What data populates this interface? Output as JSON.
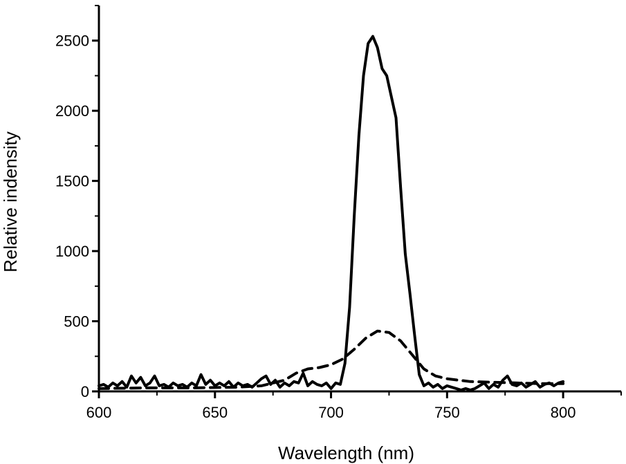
{
  "chart_data": {
    "type": "line",
    "title": "",
    "xlabel": "Wavelength (nm)",
    "ylabel": "Relative indensity",
    "xlim": [
      600,
      825
    ],
    "ylim": [
      0,
      2750
    ],
    "x_ticks": [
      "600",
      "650",
      "700",
      "750",
      "800"
    ],
    "y_ticks": [
      "0",
      "500",
      "1000",
      "1500",
      "2000",
      "2500"
    ],
    "grid": false,
    "legend": "none",
    "series": [
      {
        "style": "solid",
        "color": "#000000",
        "points": [
          [
            600,
            40
          ],
          [
            602,
            50
          ],
          [
            604,
            30
          ],
          [
            606,
            60
          ],
          [
            608,
            40
          ],
          [
            610,
            70
          ],
          [
            612,
            30
          ],
          [
            614,
            110
          ],
          [
            616,
            60
          ],
          [
            618,
            100
          ],
          [
            620,
            40
          ],
          [
            622,
            60
          ],
          [
            624,
            110
          ],
          [
            626,
            40
          ],
          [
            628,
            50
          ],
          [
            630,
            30
          ],
          [
            632,
            60
          ],
          [
            634,
            40
          ],
          [
            636,
            50
          ],
          [
            638,
            30
          ],
          [
            640,
            60
          ],
          [
            642,
            40
          ],
          [
            644,
            120
          ],
          [
            646,
            50
          ],
          [
            648,
            80
          ],
          [
            650,
            40
          ],
          [
            652,
            60
          ],
          [
            654,
            40
          ],
          [
            656,
            70
          ],
          [
            658,
            30
          ],
          [
            660,
            60
          ],
          [
            662,
            40
          ],
          [
            664,
            50
          ],
          [
            666,
            30
          ],
          [
            668,
            60
          ],
          [
            670,
            90
          ],
          [
            672,
            110
          ],
          [
            674,
            50
          ],
          [
            676,
            80
          ],
          [
            678,
            30
          ],
          [
            680,
            60
          ],
          [
            682,
            40
          ],
          [
            684,
            70
          ],
          [
            686,
            60
          ],
          [
            688,
            130
          ],
          [
            690,
            40
          ],
          [
            692,
            70
          ],
          [
            694,
            50
          ],
          [
            696,
            40
          ],
          [
            698,
            60
          ],
          [
            700,
            20
          ],
          [
            702,
            60
          ],
          [
            704,
            50
          ],
          [
            706,
            200
          ],
          [
            708,
            600
          ],
          [
            710,
            1250
          ],
          [
            712,
            1820
          ],
          [
            714,
            2250
          ],
          [
            716,
            2480
          ],
          [
            718,
            2530
          ],
          [
            720,
            2450
          ],
          [
            722,
            2300
          ],
          [
            724,
            2250
          ],
          [
            726,
            2100
          ],
          [
            728,
            1950
          ],
          [
            730,
            1450
          ],
          [
            732,
            980
          ],
          [
            734,
            700
          ],
          [
            736,
            400
          ],
          [
            738,
            120
          ],
          [
            740,
            40
          ],
          [
            742,
            60
          ],
          [
            744,
            30
          ],
          [
            746,
            50
          ],
          [
            748,
            20
          ],
          [
            750,
            40
          ],
          [
            752,
            30
          ],
          [
            754,
            20
          ],
          [
            756,
            10
          ],
          [
            758,
            20
          ],
          [
            760,
            10
          ],
          [
            762,
            20
          ],
          [
            764,
            40
          ],
          [
            766,
            60
          ],
          [
            768,
            20
          ],
          [
            770,
            50
          ],
          [
            772,
            30
          ],
          [
            774,
            80
          ],
          [
            776,
            110
          ],
          [
            778,
            50
          ],
          [
            780,
            40
          ],
          [
            782,
            60
          ],
          [
            784,
            30
          ],
          [
            786,
            50
          ],
          [
            788,
            70
          ],
          [
            790,
            30
          ],
          [
            792,
            50
          ],
          [
            794,
            60
          ],
          [
            796,
            40
          ],
          [
            798,
            60
          ],
          [
            800,
            70
          ]
        ]
      },
      {
        "style": "dashed",
        "color": "#000000",
        "points": [
          [
            600,
            20
          ],
          [
            620,
            25
          ],
          [
            640,
            25
          ],
          [
            660,
            30
          ],
          [
            670,
            40
          ],
          [
            680,
            80
          ],
          [
            685,
            130
          ],
          [
            690,
            160
          ],
          [
            695,
            170
          ],
          [
            700,
            190
          ],
          [
            705,
            230
          ],
          [
            710,
            300
          ],
          [
            715,
            380
          ],
          [
            720,
            430
          ],
          [
            725,
            420
          ],
          [
            730,
            360
          ],
          [
            735,
            260
          ],
          [
            740,
            160
          ],
          [
            745,
            110
          ],
          [
            750,
            90
          ],
          [
            755,
            80
          ],
          [
            760,
            70
          ],
          [
            770,
            65
          ],
          [
            780,
            60
          ],
          [
            790,
            55
          ],
          [
            800,
            55
          ]
        ]
      }
    ]
  }
}
